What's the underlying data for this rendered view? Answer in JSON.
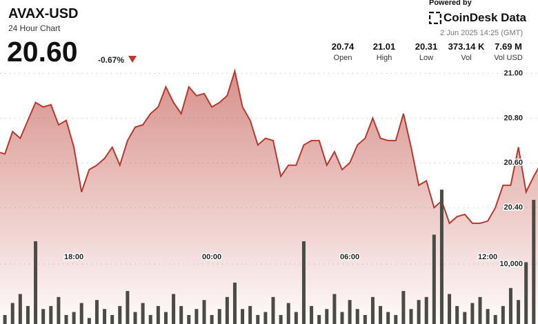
{
  "header": {
    "title": "AVAX-USD",
    "subtitle": "24 Hour Chart",
    "price": "20.60",
    "change": "-0.67%",
    "powered_by": "Powered by",
    "brand": "CoinDesk Data",
    "timestamp": "2 Jun 2025 14:25 (GMT)",
    "stats": [
      {
        "value": "20.74",
        "label": "Open"
      },
      {
        "value": "21.01",
        "label": "High"
      },
      {
        "value": "20.31",
        "label": "Low"
      },
      {
        "value": "373.14 K",
        "label": "Vol"
      },
      {
        "value": "7.69 M",
        "label": "Vol USD"
      }
    ]
  },
  "chart_data": {
    "type": "area",
    "categories": [
      null,
      null,
      null,
      null,
      null,
      null,
      null,
      null,
      null,
      null,
      "18:00",
      null,
      null,
      null,
      null,
      null,
      null,
      null,
      null,
      null,
      null,
      null,
      null,
      null,
      null,
      null,
      null,
      null,
      "00:00",
      null,
      null,
      null,
      null,
      null,
      null,
      null,
      null,
      null,
      null,
      null,
      null,
      null,
      null,
      null,
      null,
      null,
      "06:00",
      null,
      null,
      null,
      null,
      null,
      null,
      null,
      null,
      null,
      null,
      null,
      null,
      null,
      null,
      null,
      null,
      null,
      "12:00",
      null,
      null,
      null,
      null,
      null,
      null,
      null
    ],
    "series": [
      {
        "type": "area",
        "color": "#b8372c",
        "values": [
          20.65,
          20.64,
          20.74,
          20.71,
          20.79,
          20.87,
          20.85,
          20.86,
          20.77,
          20.79,
          20.67,
          20.47,
          20.57,
          20.59,
          20.62,
          20.67,
          20.59,
          20.7,
          20.76,
          20.77,
          20.82,
          20.85,
          20.94,
          20.87,
          20.82,
          20.94,
          20.9,
          20.91,
          20.85,
          20.87,
          20.9,
          21.01,
          20.85,
          20.79,
          20.68,
          20.71,
          20.7,
          20.54,
          20.59,
          20.59,
          20.68,
          20.7,
          20.7,
          20.59,
          20.65,
          20.57,
          20.6,
          20.68,
          20.71,
          20.8,
          20.71,
          20.7,
          20.7,
          20.82,
          20.67,
          20.5,
          20.52,
          20.4,
          20.43,
          20.33,
          20.36,
          20.37,
          20.33,
          20.33,
          20.34,
          20.4,
          20.5,
          20.5,
          20.67,
          20.47,
          20.54,
          20.6
        ]
      },
      {
        "type": "bar",
        "axis": "y2",
        "color": "#4b4b45",
        "values": [
          2000,
          1500,
          3500,
          5000,
          3000,
          13800,
          2500,
          3000,
          4500,
          1500,
          2000,
          3500,
          1000,
          4000,
          2500,
          1500,
          3000,
          5500,
          2000,
          3500,
          1500,
          3000,
          2000,
          5000,
          3000,
          1500,
          2500,
          4000,
          1500,
          2500,
          4500,
          6900,
          2500,
          3000,
          1500,
          2000,
          4500,
          1500,
          3500,
          2000,
          13800,
          3000,
          1500,
          2500,
          5000,
          2000,
          4000,
          2500,
          1500,
          4500,
          3000,
          2000,
          1500,
          5500,
          2500,
          4000,
          4500,
          14900,
          22400,
          5000,
          3000,
          2000,
          3500,
          4500,
          2500,
          1500,
          3000,
          6000,
          4000,
          10300,
          20700,
          4500
        ]
      }
    ],
    "ylim": [
      19.88,
      21.02
    ],
    "yticks": [
      {
        "value": 21,
        "label": "21.00"
      },
      {
        "value": 20.8,
        "label": "20.80"
      },
      {
        "value": 20.6,
        "label": "20.60"
      },
      {
        "value": 20.4,
        "label": "20.40"
      }
    ],
    "y2lim": [
      0,
      40000
    ],
    "y2ticks": [
      {
        "value": 10000,
        "label": "10,000"
      }
    ],
    "grid": true
  }
}
